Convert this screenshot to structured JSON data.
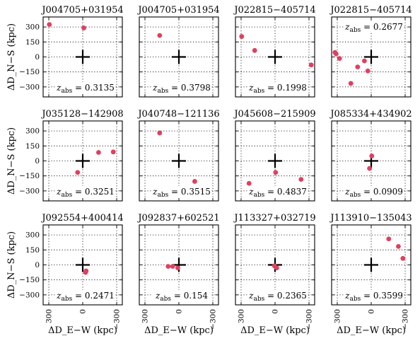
{
  "chart_data": {
    "type": "scatter",
    "layout": "3x4 grid of panels",
    "xlabel": "ΔD_E−W (kpc)",
    "ylabel": "ΔD_N−S (kpc)",
    "xlim": [
      350,
      -350
    ],
    "ylim": [
      -400,
      400
    ],
    "xticks": [
      300,
      0,
      -300
    ],
    "yticks": [
      300,
      150,
      0,
      -150,
      -300
    ],
    "xtick_labels": [
      "300",
      "0",
      "−300"
    ],
    "ytick_labels": [
      "300",
      "150",
      "0",
      "−150",
      "−300"
    ],
    "grid": true,
    "marker_color": "#e0405e",
    "center_marker": "cross at (0, 0)",
    "zabs_label_prefix": "z",
    "zabs_label_sub": "abs",
    "panels": [
      {
        "title": "J004705+031954",
        "zabs": "0.3135",
        "zabs_pos": "bottom",
        "points": [
          {
            "x": 295,
            "y": 325
          },
          {
            "x": -10,
            "y": 290
          }
        ]
      },
      {
        "title": "J004705+031954",
        "zabs": "0.3798",
        "zabs_pos": "bottom",
        "points": [
          {
            "x": 170,
            "y": 215
          }
        ]
      },
      {
        "title": "J022815−405714",
        "zabs": "0.1998",
        "zabs_pos": "bottom",
        "points": [
          {
            "x": 295,
            "y": 205
          },
          {
            "x": 180,
            "y": 65
          },
          {
            "x": -320,
            "y": -80
          }
        ]
      },
      {
        "title": "J022815−405714",
        "zabs": "0.2677",
        "zabs_pos": "top",
        "points": [
          {
            "x": 320,
            "y": 45
          },
          {
            "x": 310,
            "y": 30
          },
          {
            "x": 280,
            "y": -15
          },
          {
            "x": 180,
            "y": -265
          },
          {
            "x": 120,
            "y": -100
          },
          {
            "x": 60,
            "y": -40
          },
          {
            "x": 30,
            "y": -140
          }
        ]
      },
      {
        "title": "J035128−142908",
        "zabs": "0.3251",
        "zabs_pos": "bottom",
        "points": [
          {
            "x": 45,
            "y": -115
          },
          {
            "x": -140,
            "y": 85
          },
          {
            "x": -270,
            "y": 90
          }
        ]
      },
      {
        "title": "J040748−121136",
        "zabs": "0.3515",
        "zabs_pos": "bottom",
        "points": [
          {
            "x": 170,
            "y": 280
          },
          {
            "x": -140,
            "y": -205
          }
        ]
      },
      {
        "title": "J045608−215909",
        "zabs": "0.4837",
        "zabs_pos": "bottom",
        "points": [
          {
            "x": 230,
            "y": -225
          },
          {
            "x": -5,
            "y": -115
          },
          {
            "x": -230,
            "y": -185
          }
        ]
      },
      {
        "title": "J085334+434902",
        "zabs": "0.0909",
        "zabs_pos": "bottom",
        "points": [
          {
            "x": -5,
            "y": 50
          },
          {
            "x": 15,
            "y": -75
          }
        ]
      },
      {
        "title": "J092554+400414",
        "zabs": "0.2471",
        "zabs_pos": "bottom",
        "points": [
          {
            "x": -30,
            "y": -60
          },
          {
            "x": -25,
            "y": -75
          }
        ]
      },
      {
        "title": "J092837+602521",
        "zabs": "0.154",
        "zabs_pos": "bottom",
        "points": [
          {
            "x": 95,
            "y": -15
          },
          {
            "x": 55,
            "y": -15
          },
          {
            "x": 10,
            "y": -30
          }
        ]
      },
      {
        "title": "J113327+032719",
        "zabs": "0.2365",
        "zabs_pos": "bottom",
        "points": [
          {
            "x": 5,
            "y": -10
          },
          {
            "x": -15,
            "y": -30
          }
        ]
      },
      {
        "title": "J113910−135043",
        "zabs": "0.3599",
        "zabs_pos": "bottom",
        "points": [
          {
            "x": -155,
            "y": 260
          },
          {
            "x": -240,
            "y": 185
          },
          {
            "x": -280,
            "y": 65
          }
        ]
      }
    ]
  }
}
